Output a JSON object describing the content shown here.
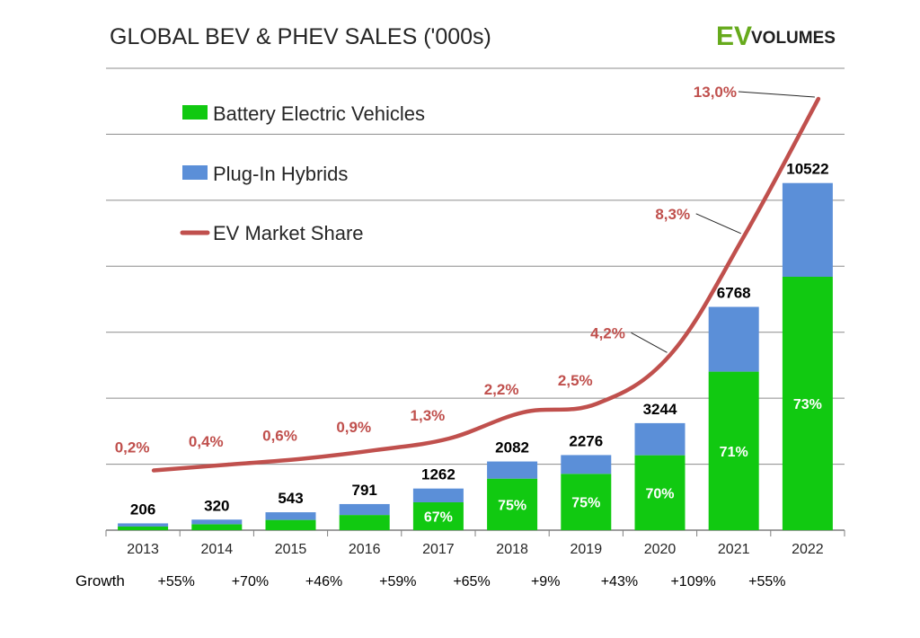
{
  "title": "GLOBAL BEV & PHEV SALES ('000s)",
  "logo": {
    "brand": "EV",
    "rest": "VOLUMES"
  },
  "legend": {
    "bev": "Battery Electric Vehicles",
    "phev": "Plug-In Hybrids",
    "share": "EV Market Share"
  },
  "colors": {
    "bev": "#11c911",
    "phev": "#5b8fd8",
    "share": "#c0504d",
    "logo_green": "#66aa1c"
  },
  "growth_label": "Growth",
  "chart_data": {
    "type": "bar",
    "stacked": true,
    "title": "GLOBAL BEV & PHEV SALES ('000s)",
    "categories": [
      "2013",
      "2014",
      "2015",
      "2016",
      "2017",
      "2018",
      "2019",
      "2020",
      "2021",
      "2022"
    ],
    "totals": [
      206,
      320,
      543,
      791,
      1262,
      2082,
      2276,
      3244,
      6768,
      10522
    ],
    "series": [
      {
        "name": "Battery Electric Vehicles",
        "values": [
          110,
          180,
          310,
          460,
          845,
          1562,
          1707,
          2271,
          4805,
          7681
        ]
      },
      {
        "name": "Plug-In Hybrids",
        "values": [
          96,
          140,
          233,
          331,
          417,
          520,
          569,
          973,
          1963,
          2841
        ]
      }
    ],
    "bev_share_labels": [
      "",
      "",
      "",
      "",
      "67%",
      "75%",
      "75%",
      "70%",
      "71%",
      "73%"
    ],
    "market_share": {
      "name": "EV Market Share",
      "values": [
        0.2,
        0.4,
        0.6,
        0.9,
        1.3,
        2.2,
        2.5,
        4.2,
        8.3,
        13.0
      ],
      "labels": [
        "0,2%",
        "0,4%",
        "0,6%",
        "0,9%",
        "1,3%",
        "2,2%",
        "2,5%",
        "4,2%",
        "8,3%",
        "13,0%"
      ]
    },
    "growth": [
      "+55%",
      "+70%",
      "+46%",
      "+59%",
      "+65%",
      "+9%",
      "+43%",
      "+109%",
      "+55%"
    ],
    "ylim": [
      0,
      14000
    ],
    "grid": true,
    "legend_position": "top-left"
  }
}
